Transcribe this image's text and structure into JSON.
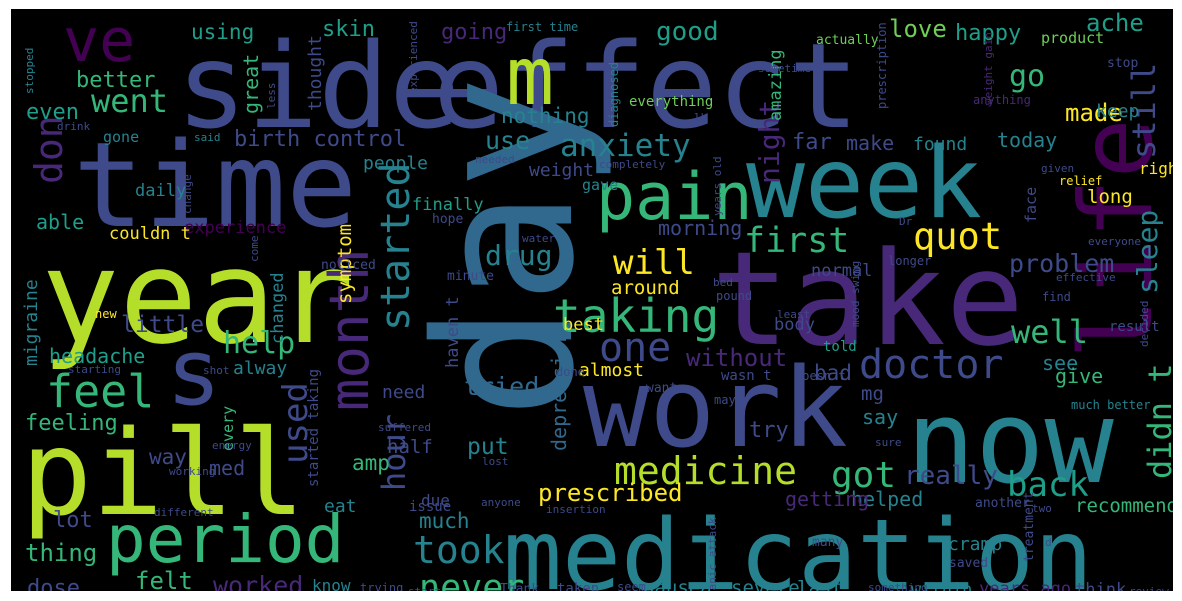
{
  "palette": {
    "purple": "#440154",
    "indigo": "#482878",
    "slate": "#3e4a89",
    "blue": "#31688e",
    "teal": "#26828e",
    "aqua": "#1f9e89",
    "green": "#35b779",
    "lime": "#6ece58",
    "yellowgreen": "#b5de2b",
    "yellow": "#fde725"
  },
  "words": [
    {
      "text": "side"
    },
    {
      "text": "effect"
    },
    {
      "text": "time"
    },
    {
      "text": "year"
    },
    {
      "text": "pill"
    },
    {
      "text": "day"
    },
    {
      "text": "take"
    },
    {
      "text": "work"
    },
    {
      "text": "now"
    },
    {
      "text": "medication"
    },
    {
      "text": "week"
    },
    {
      "text": "life"
    },
    {
      "text": "pain"
    },
    {
      "text": "period"
    },
    {
      "text": "month"
    },
    {
      "text": "s"
    },
    {
      "text": "m"
    },
    {
      "text": "ve"
    },
    {
      "text": "feel"
    },
    {
      "text": "taking"
    },
    {
      "text": "doctor"
    },
    {
      "text": "medicine"
    },
    {
      "text": "started"
    },
    {
      "text": "one"
    },
    {
      "text": "quot"
    },
    {
      "text": "first"
    },
    {
      "text": "anxiety"
    },
    {
      "text": "took"
    },
    {
      "text": "drug"
    },
    {
      "text": "got"
    },
    {
      "text": "will"
    },
    {
      "text": "help"
    },
    {
      "text": "well"
    },
    {
      "text": "back"
    },
    {
      "text": "still"
    },
    {
      "text": "sleep"
    },
    {
      "text": "didn t"
    },
    {
      "text": "night"
    },
    {
      "text": "don"
    },
    {
      "text": "hour"
    },
    {
      "text": "used"
    },
    {
      "text": "never"
    },
    {
      "text": "went"
    },
    {
      "text": "go"
    },
    {
      "text": "made"
    },
    {
      "text": "good"
    },
    {
      "text": "love"
    },
    {
      "text": "happy"
    },
    {
      "text": "ache"
    },
    {
      "text": "birth control"
    },
    {
      "text": "problem"
    },
    {
      "text": "without"
    },
    {
      "text": "tried"
    },
    {
      "text": "really"
    },
    {
      "text": "prescribed"
    },
    {
      "text": "worked"
    },
    {
      "text": "felt"
    },
    {
      "text": "thing"
    },
    {
      "text": "dose"
    },
    {
      "text": "lot"
    },
    {
      "text": "feeling"
    },
    {
      "text": "headache"
    },
    {
      "text": "migraine"
    },
    {
      "text": "little"
    },
    {
      "text": "better"
    },
    {
      "text": "even"
    },
    {
      "text": "able"
    },
    {
      "text": "using"
    },
    {
      "text": "skin"
    },
    {
      "text": "going"
    },
    {
      "text": "great"
    },
    {
      "text": "thought"
    },
    {
      "text": "use"
    },
    {
      "text": "nothing"
    },
    {
      "text": "far"
    },
    {
      "text": "make"
    },
    {
      "text": "found"
    },
    {
      "text": "today"
    },
    {
      "text": "amazing"
    },
    {
      "text": "symptom"
    },
    {
      "text": "morning"
    },
    {
      "text": "weight"
    },
    {
      "text": "gave"
    },
    {
      "text": "finally"
    },
    {
      "text": "daily"
    },
    {
      "text": "experience"
    },
    {
      "text": "couldn t"
    },
    {
      "text": "changed"
    },
    {
      "text": "haven t"
    },
    {
      "text": "around"
    },
    {
      "text": "best"
    },
    {
      "text": "bad"
    },
    {
      "text": "mg"
    },
    {
      "text": "say"
    },
    {
      "text": "normal"
    },
    {
      "text": "body"
    },
    {
      "text": "see"
    },
    {
      "text": "give"
    },
    {
      "text": "long"
    },
    {
      "text": "right"
    },
    {
      "text": "keep"
    },
    {
      "text": "depression"
    },
    {
      "text": "amp"
    },
    {
      "text": "put"
    },
    {
      "text": "half"
    },
    {
      "text": "way"
    },
    {
      "text": "med"
    },
    {
      "text": "alway"
    },
    {
      "text": "people"
    },
    {
      "text": "need"
    },
    {
      "text": "much"
    },
    {
      "text": "try"
    },
    {
      "text": "almost"
    },
    {
      "text": "helped"
    },
    {
      "text": "getting"
    },
    {
      "text": "recommend"
    },
    {
      "text": "cramp"
    },
    {
      "text": "nausea"
    },
    {
      "text": "severe"
    },
    {
      "text": "last"
    },
    {
      "text": "within"
    },
    {
      "text": "years ago"
    },
    {
      "text": "think"
    },
    {
      "text": "eat"
    },
    {
      "text": "due"
    },
    {
      "text": "issue"
    },
    {
      "text": "know"
    },
    {
      "text": "every"
    },
    {
      "text": "started taking"
    },
    {
      "text": "told"
    },
    {
      "text": "actually"
    },
    {
      "text": "product"
    },
    {
      "text": "stop"
    },
    {
      "text": "everything"
    },
    {
      "text": "diagnosed"
    },
    {
      "text": "first time"
    },
    {
      "text": "sometime"
    },
    {
      "text": "prescription"
    },
    {
      "text": "weight gain"
    },
    {
      "text": "anything"
    },
    {
      "text": "less"
    },
    {
      "text": "experienced"
    },
    {
      "text": "stopped"
    },
    {
      "text": "drink"
    },
    {
      "text": "said"
    },
    {
      "text": "gone"
    },
    {
      "text": "needed"
    },
    {
      "text": "completely"
    },
    {
      "text": "lb"
    },
    {
      "text": "years old"
    },
    {
      "text": "face"
    },
    {
      "text": "given"
    },
    {
      "text": "relief"
    },
    {
      "text": "Dr"
    },
    {
      "text": "hope"
    },
    {
      "text": "water"
    },
    {
      "text": "come"
    },
    {
      "text": "change"
    },
    {
      "text": "noticed"
    },
    {
      "text": "minute"
    },
    {
      "text": "bed"
    },
    {
      "text": "pound"
    },
    {
      "text": "mood swing"
    },
    {
      "text": "least"
    },
    {
      "text": "everyone"
    },
    {
      "text": "effective"
    },
    {
      "text": "find"
    },
    {
      "text": "result"
    },
    {
      "text": "decided"
    },
    {
      "text": "longer"
    },
    {
      "text": "new"
    },
    {
      "text": "starting"
    },
    {
      "text": "shot"
    },
    {
      "text": "done"
    },
    {
      "text": "want"
    },
    {
      "text": "may"
    },
    {
      "text": "wasn t"
    },
    {
      "text": "doesn t"
    },
    {
      "text": "much better"
    },
    {
      "text": "energy"
    },
    {
      "text": "working"
    },
    {
      "text": "suffered"
    },
    {
      "text": "lost"
    },
    {
      "text": "sure"
    },
    {
      "text": "two"
    },
    {
      "text": "another"
    },
    {
      "text": "treatment"
    },
    {
      "text": "saved"
    },
    {
      "text": "d"
    },
    {
      "text": "different"
    },
    {
      "text": "anyone"
    },
    {
      "text": "insertion"
    },
    {
      "text": "panic attack"
    },
    {
      "text": "many"
    },
    {
      "text": "something"
    },
    {
      "text": "review"
    },
    {
      "text": "trying"
    },
    {
      "text": "start"
    },
    {
      "text": "Thank"
    },
    {
      "text": "taken"
    },
    {
      "text": "seem"
    }
  ]
}
